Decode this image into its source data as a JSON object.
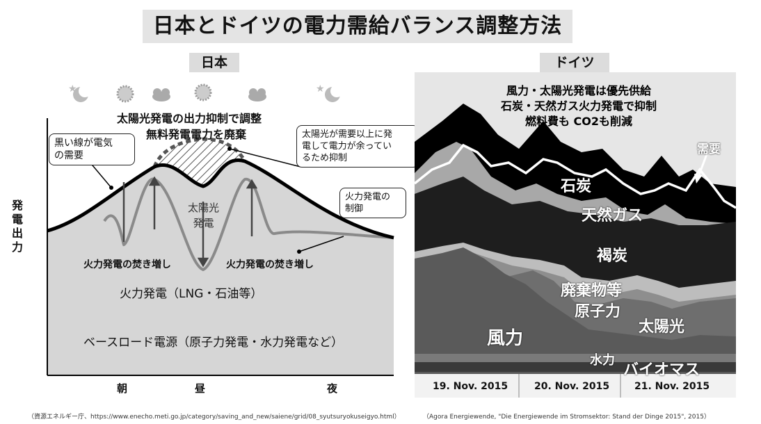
{
  "title": "日本とドイツの電力需給バランス調整方法",
  "japan": {
    "tag": "日本",
    "y_axis_label": "発電出力",
    "x_labels": [
      "朝",
      "昼",
      "夜"
    ],
    "weather_icons": [
      "moon-star-icon",
      "sun-icon",
      "cloud-icon",
      "sun-icon",
      "cloud-icon",
      "moon-star-icon"
    ],
    "solar_curtailment_line1": "太陽光発電の出力抑制で調整",
    "solar_curtailment_line2": "無料発電電力を廃棄",
    "demand_box_line1": "黒い線が電気",
    "demand_box_line2": "の需要",
    "surplus_box_line1": "太陽光が需要以上に発",
    "surplus_box_line2": "電して電力が余ってい",
    "surplus_box_line3": "るため抑制",
    "thermal_control_line1": "火力発電の",
    "thermal_control_line2": "制御",
    "solar_label_line1": "太陽光",
    "solar_label_line2": "発電",
    "thermal_boost_left": "火力発電の焚き増し",
    "thermal_boost_right": "火力発電の焚き増し",
    "thermal_layer": "火力発電（LNG・石油等）",
    "baseload_layer": "ベースロード電源（原子力発電・水力発電など）",
    "source": "（資源エネルギー庁、https://www.enecho.meti.go.jp/category/saving_and_new/saiene/grid/08_syutsuryokuseigyo.html）"
  },
  "germany": {
    "tag": "ドイツ",
    "headline_line1": "風力・太陽光発電は優先供給",
    "headline_line2": "石炭・天然ガス火力発電で抑制",
    "headline_line3": "燃料費も CO2も削減",
    "demand_label": "需要",
    "layers": {
      "coal": "石炭",
      "gas": "天然ガス",
      "lignite": "褐炭",
      "waste": "廃棄物等",
      "nuclear": "原子力",
      "solar": "太陽光",
      "wind": "風力",
      "hydro": "水力",
      "biomass": "バイオマス"
    },
    "dates": [
      "19. Nov. 2015",
      "20. Nov. 2015",
      "21. Nov. 2015"
    ],
    "source": "（Agora Energiewende, \"Die Energiewende im Stromsektor: Stand der Dinge 2015\", 2015）"
  },
  "colors": {
    "wind": "#5a5a5a",
    "nuclear": "#9a9a9a",
    "lignite": "#1e1e1e",
    "gas": "#a8a8a8",
    "coal": "#000000",
    "thermal_area": "#d6d6d6"
  }
}
